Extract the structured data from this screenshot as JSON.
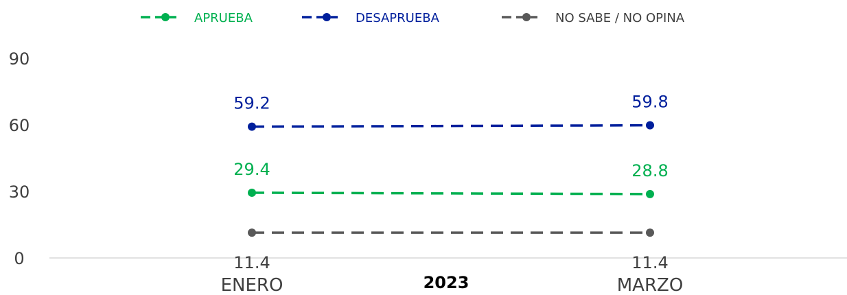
{
  "chart_data": {
    "type": "line",
    "categories": [
      "ENERO",
      "MARZO"
    ],
    "group_label": "2023",
    "ylim": [
      0,
      90
    ],
    "yticks": [
      "0",
      "30",
      "60",
      "90"
    ],
    "grid": false,
    "legend_position": "top",
    "series": [
      {
        "name": "APRUEBA",
        "values": [
          29.4,
          28.8
        ],
        "labels": [
          "29.4",
          "28.8"
        ],
        "color": "#00b050",
        "label_position": "above"
      },
      {
        "name": "DESAPRUEBA",
        "values": [
          59.2,
          59.8
        ],
        "labels": [
          "59.2",
          "59.8"
        ],
        "color": "#001f9c",
        "label_position": "above"
      },
      {
        "name": "NO SABE / NO OPINA",
        "values": [
          11.4,
          11.4
        ],
        "labels": [
          "11.4",
          "11.4"
        ],
        "color": "#595959",
        "label_position": "below"
      }
    ]
  }
}
